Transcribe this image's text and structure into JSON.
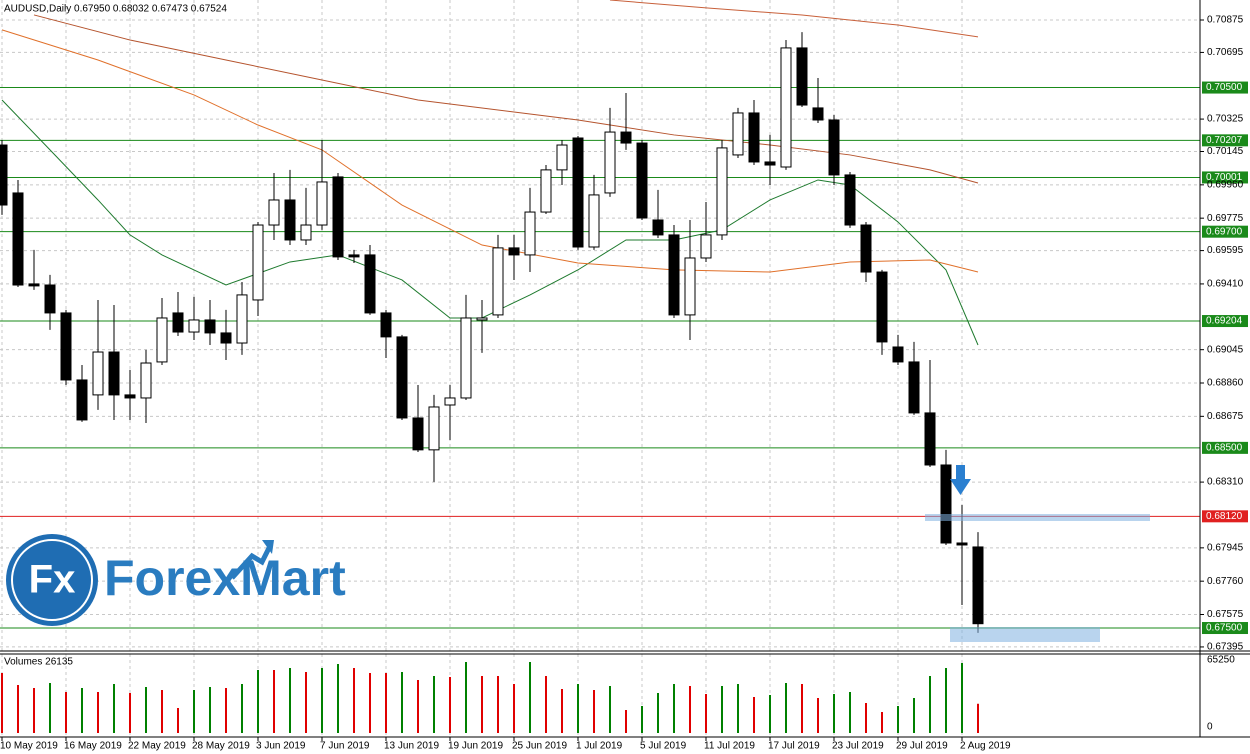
{
  "chart_data": {
    "type": "candlestick",
    "header": "AUDUSD,Daily  0.67950 0.68032 0.67473 0.67524",
    "volume_label": "Volumes 26135",
    "logo": {
      "mark": "Fx",
      "name": "ForexMart"
    },
    "categories": [
      "10 May 2019",
      null,
      null,
      null,
      "16 May 2019",
      null,
      null,
      null,
      "22 May 2019",
      null,
      null,
      null,
      "28 May 2019",
      null,
      null,
      null,
      "3 Jun 2019",
      null,
      null,
      null,
      "7 Jun 2019",
      null,
      null,
      null,
      "13 Jun 2019",
      null,
      null,
      null,
      "19 Jun 2019",
      null,
      null,
      null,
      "25 Jun 2019",
      null,
      null,
      null,
      "1 Jul 2019",
      null,
      null,
      null,
      "5 Jul 2019",
      null,
      null,
      null,
      "11 Jul 2019",
      null,
      null,
      null,
      "17 Jul 2019",
      null,
      null,
      null,
      "23 Jul 2019",
      null,
      null,
      null,
      "29 Jul 2019",
      null,
      null,
      null,
      "2 Aug 2019",
      null
    ],
    "open": [
      0.70181,
      0.69915,
      0.6941,
      0.69404,
      0.69249,
      0.68877,
      0.68794,
      0.69032,
      0.68794,
      0.68777,
      0.68977,
      0.69249,
      0.69143,
      0.6921,
      0.69138,
      0.69082,
      0.69321,
      0.69737,
      0.69876,
      0.69654,
      0.69737,
      0.70004,
      0.69571,
      0.69571,
      0.69249,
      0.69116,
      0.68666,
      0.68489,
      0.68738,
      0.68777,
      0.6921,
      0.69238,
      0.6961,
      0.69571,
      0.69809,
      0.70043,
      0.7022,
      0.69615,
      0.69915,
      0.70253,
      0.70192,
      0.69765,
      0.69682,
      0.69238,
      0.69554,
      0.69682,
      0.70126,
      0.70359,
      0.70087,
      0.70059,
      0.7072,
      0.70387,
      0.7032,
      0.70015,
      0.69737,
      0.69476,
      0.6906,
      0.68977,
      0.68694,
      0.68405,
      0.67972,
      0.6795
    ],
    "high": [
      0.70209,
      0.69987,
      0.69599,
      0.6946,
      0.69266,
      0.6896,
      0.69321,
      0.69293,
      0.68933,
      0.69044,
      0.69332,
      0.69365,
      0.69338,
      0.69321,
      0.69266,
      0.69421,
      0.69754,
      0.70026,
      0.70043,
      0.69943,
      0.70209,
      0.70026,
      0.69599,
      0.69626,
      0.69266,
      0.69127,
      0.68849,
      0.68794,
      0.68849,
      0.69349,
      0.69321,
      0.69682,
      0.69682,
      0.69943,
      0.7007,
      0.70209,
      0.70231,
      0.70015,
      0.70387,
      0.7047,
      0.70209,
      0.69932,
      0.69737,
      0.69765,
      0.69865,
      0.70209,
      0.70387,
      0.70431,
      0.70237,
      0.70764,
      0.70808,
      0.70553,
      0.70348,
      0.70031,
      0.69754,
      0.69488,
      0.69127,
      0.69088,
      0.68988,
      0.68489,
      0.68183,
      0.68032
    ],
    "low": [
      0.69793,
      0.69393,
      0.69377,
      0.69155,
      0.68849,
      0.68644,
      0.68711,
      0.68655,
      0.68655,
      0.68638,
      0.6896,
      0.69121,
      0.69099,
      0.69071,
      0.68988,
      0.69016,
      0.69232,
      0.69654,
      0.69626,
      0.69626,
      0.6971,
      0.69543,
      0.69526,
      0.69238,
      0.68999,
      0.68655,
      0.68477,
      0.68311,
      0.68544,
      0.68766,
      0.69027,
      0.69221,
      0.69432,
      0.69476,
      0.69798,
      0.69959,
      0.69599,
      0.69599,
      0.69893,
      0.70154,
      0.69765,
      0.69665,
      0.69221,
      0.69099,
      0.69532,
      0.69654,
      0.70109,
      0.7007,
      0.69959,
      0.70043,
      0.70392,
      0.70303,
      0.69959,
      0.69721,
      0.69421,
      0.69016,
      0.6896,
      0.68683,
      0.68394,
      0.67961,
      0.67628,
      0.67473
    ],
    "close": [
      0.69848,
      0.69404,
      0.69399,
      0.69249,
      0.68877,
      0.68655,
      0.69032,
      0.68794,
      0.68777,
      0.68971,
      0.69221,
      0.69143,
      0.6921,
      0.69138,
      0.69082,
      0.69349,
      0.69737,
      0.69876,
      0.69654,
      0.69737,
      0.69976,
      0.6956,
      0.6956,
      0.69249,
      0.69116,
      0.68666,
      0.68489,
      0.68727,
      0.68777,
      0.69221,
      0.69221,
      0.6961,
      0.69571,
      0.69809,
      0.70043,
      0.70181,
      0.69615,
      0.69904,
      0.70253,
      0.70192,
      0.69776,
      0.69682,
      0.69238,
      0.69554,
      0.69682,
      0.70165,
      0.70359,
      0.70087,
      0.7007,
      0.7072,
      0.70403,
      0.7032,
      0.70015,
      0.69737,
      0.69476,
      0.69088,
      0.68977,
      0.68694,
      0.68405,
      0.67972,
      0.67961,
      0.67524
    ],
    "volumes": [
      53640,
      42912,
      40230,
      44700,
      36654,
      40230,
      36654,
      43806,
      35760,
      41124,
      38442,
      22350,
      38442,
      41124,
      40230,
      43806,
      56322,
      56322,
      58110,
      54534,
      58110,
      61686,
      58110,
      53640,
      53640,
      54534,
      47382,
      50958,
      50064,
      63474,
      50958,
      50958,
      43806,
      63474,
      50958,
      39336,
      43806,
      38442,
      42018,
      20562,
      24138,
      35760,
      43806,
      42018,
      34866,
      42018,
      43806,
      32184,
      33972,
      44700,
      43806,
      31290,
      34866,
      36654,
      26820,
      18774,
      24138,
      31290,
      50958,
      58110,
      62580,
      26135
    ],
    "up_color": "#ffffff",
    "down_color": "#000000",
    "vol_up_color": "#008000",
    "vol_down_color": "#e00000",
    "ylim": [
      0.67378,
      0.70986
    ],
    "yticks": [
      {
        "value": 0.70875,
        "label": "0.70875"
      },
      {
        "value": 0.70695,
        "label": "0.70695"
      },
      {
        "value": 0.70325,
        "label": "0.70325"
      },
      {
        "value": 0.70145,
        "label": "0.70145"
      },
      {
        "value": 0.6996,
        "label": "0.69960"
      },
      {
        "value": 0.69775,
        "label": "0.69775"
      },
      {
        "value": 0.69595,
        "label": "0.69595"
      },
      {
        "value": 0.6941,
        "label": "0.69410"
      },
      {
        "value": 0.69045,
        "label": "0.69045"
      },
      {
        "value": 0.6886,
        "label": "0.68860"
      },
      {
        "value": 0.68675,
        "label": "0.68675"
      },
      {
        "value": 0.6831,
        "label": "0.68310"
      },
      {
        "value": 0.67945,
        "label": "0.67945"
      },
      {
        "value": 0.6776,
        "label": "0.67760"
      },
      {
        "value": 0.67575,
        "label": "0.67575"
      },
      {
        "value": 0.67395,
        "label": "0.67395"
      }
    ],
    "levels": [
      {
        "value": 0.705,
        "label": "0.70500",
        "color": "#1a8a1a"
      },
      {
        "value": 0.70207,
        "label": "0.70207",
        "color": "#1a8a1a"
      },
      {
        "value": 0.70001,
        "label": "0.70001",
        "color": "#1a8a1a"
      },
      {
        "value": 0.697,
        "label": "0.69700",
        "color": "#1a8a1a"
      },
      {
        "value": 0.69204,
        "label": "0.69204",
        "color": "#1a8a1a"
      },
      {
        "value": 0.685,
        "label": "0.68500",
        "color": "#1a8a1a"
      },
      {
        "value": 0.6812,
        "label": "0.68120",
        "color": "#e02020"
      },
      {
        "value": 0.675,
        "label": "0.67500",
        "color": "#1a8a1a"
      }
    ],
    "vol_ylim": [
      0,
      65250
    ],
    "vol_yticks": [
      65250,
      0
    ],
    "grid": true,
    "moving_averages": [
      {
        "color": "#1e7a2e",
        "x": [
          0,
          3,
          6,
          8,
          10,
          14,
          18,
          21,
          25,
          28,
          30,
          33,
          36,
          39,
          42,
          45,
          48,
          51,
          53,
          56,
          59,
          61
        ],
        "values": [
          0.70431,
          0.70154,
          0.69876,
          0.69682,
          0.69571,
          0.69404,
          0.69532,
          0.69571,
          0.69432,
          0.69221,
          0.69221,
          0.69349,
          0.69488,
          0.69654,
          0.69654,
          0.6971,
          0.69876,
          0.69987,
          0.69959,
          0.69754,
          0.69488,
          0.69071
        ]
      },
      {
        "color": "#e0702a",
        "x": [
          0,
          6,
          12,
          16,
          20,
          25,
          30,
          36,
          42,
          48,
          53,
          58,
          61
        ],
        "values": [
          0.7082,
          0.70653,
          0.70459,
          0.70292,
          0.70154,
          0.69848,
          0.69626,
          0.69526,
          0.69488,
          0.69476,
          0.69532,
          0.69543,
          0.69476
        ]
      },
      {
        "color": "#b5542e",
        "x": [
          2,
          8,
          14,
          20,
          26,
          32,
          36,
          42,
          48,
          53,
          58,
          61
        ],
        "values": [
          0.70903,
          0.70764,
          0.70653,
          0.70542,
          0.70431,
          0.70364,
          0.7032,
          0.70237,
          0.70181,
          0.70126,
          0.70043,
          0.6997
        ]
      },
      {
        "color": "#c8603a",
        "x": [
          38,
          44,
          50,
          56,
          61
        ],
        "values": [
          0.70986,
          0.70942,
          0.70903,
          0.70847,
          0.70781
        ]
      }
    ]
  }
}
